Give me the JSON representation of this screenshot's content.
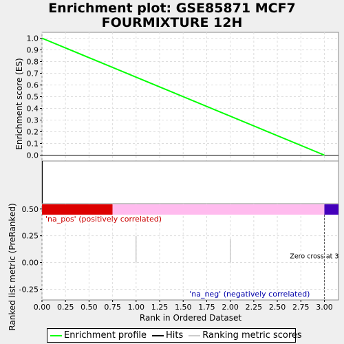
{
  "title_line1": "Enrichment plot: GSE85871 MCF7",
  "title_line2": "FOURMIXTURE 12H",
  "colors": {
    "es_line": "#00ff00",
    "hits": "#000000",
    "ranking": "#cccccc",
    "positive_bar": "#dd0000",
    "middle_bar": "#ffbbee",
    "negative_bar": "#4400bb",
    "pos_label": "#cc0000",
    "neg_label": "#0000aa"
  },
  "chart_data": [
    {
      "type": "line",
      "name": "es-panel",
      "ylabel": "Enrichment score (ES)",
      "x": [
        0,
        3
      ],
      "y": [
        1.0,
        0.0
      ],
      "ylim": [
        -0.05,
        1.05
      ],
      "xlim": [
        0,
        3.15
      ],
      "yticks": [
        "0.0",
        "0.1",
        "0.2",
        "0.3",
        "0.4",
        "0.5",
        "0.6",
        "0.7",
        "0.8",
        "0.9",
        "1.0"
      ],
      "grid": true
    },
    {
      "type": "bar",
      "name": "hits-panel",
      "hits_x": [
        0
      ]
    },
    {
      "type": "bar",
      "name": "ranking-panel",
      "ylabel": "Ranked list metric (PreRanked)",
      "xlabel": "Rank in Ordered Dataset",
      "ylim": [
        -0.35,
        0.55
      ],
      "xlim": [
        0,
        3.15
      ],
      "yticks": [
        "-0.25",
        "0.00",
        "0.25",
        "0.50"
      ],
      "xticks": [
        "0.00",
        "0.25",
        "0.50",
        "0.75",
        "1.00",
        "1.25",
        "1.50",
        "1.75",
        "2.00",
        "2.25",
        "2.50",
        "2.75",
        "3.00"
      ],
      "values": [
        0,
        0.25,
        0.22,
        0
      ],
      "x": [
        0,
        1,
        2,
        3
      ],
      "positive_bar_end": 0.75,
      "negative_bar_start": 3.0,
      "zero_cross_x": 3.0,
      "pos_label": "'na_pos' (positively correlated)",
      "neg_label": "'na_neg' (negatively correlated)",
      "zero_cross_label": "Zero cross at 3",
      "grid": true
    }
  ],
  "legend": {
    "enrichment": "Enrichment profile",
    "hits": "Hits",
    "ranking": "Ranking metric scores"
  }
}
